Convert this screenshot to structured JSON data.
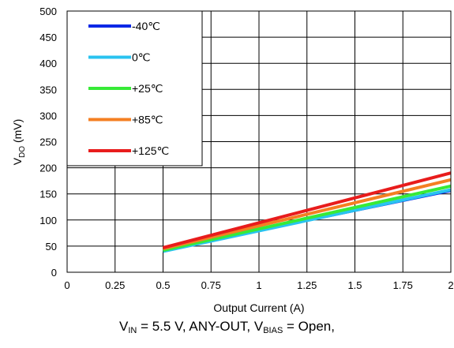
{
  "caption": {
    "v_in_main": "V",
    "v_in_sub": "IN",
    "v_in_rest": " = 5.5 V, ANY-OUT, ",
    "v_bias_main": "V",
    "v_bias_sub": "BIAS",
    "v_bias_rest": " = Open,"
  },
  "chart_data": {
    "type": "line",
    "xlabel": "Output Current (A)",
    "ylabel_main": "V",
    "ylabel_sub": "DO",
    "ylabel_rest": " (mV)",
    "xlim": [
      0,
      2
    ],
    "ylim": [
      0,
      500
    ],
    "xticks": [
      0,
      0.25,
      0.5,
      0.75,
      1,
      1.25,
      1.5,
      1.75,
      2
    ],
    "xtick_labels": [
      "0",
      "0.25",
      "0.5",
      "0.75",
      "1",
      "1.25",
      "1.5",
      "1.75",
      "2"
    ],
    "yticks": [
      0,
      50,
      100,
      150,
      200,
      250,
      300,
      350,
      400,
      450,
      500
    ],
    "ytick_labels": [
      "0",
      "50",
      "100",
      "150",
      "200",
      "250",
      "300",
      "350",
      "400",
      "450",
      "500"
    ],
    "grid": true,
    "legend_position": "top-left",
    "series": [
      {
        "name": "-40℃",
        "color": "#0a28e6",
        "x": [
          0.5,
          2
        ],
        "y": [
          41,
          155
        ]
      },
      {
        "name": "0℃",
        "color": "#29c3f0",
        "x": [
          0.5,
          2
        ],
        "y": [
          40,
          158
        ]
      },
      {
        "name": "+25℃",
        "color": "#37ea37",
        "x": [
          0.5,
          2
        ],
        "y": [
          42,
          165
        ]
      },
      {
        "name": "+85℃",
        "color": "#f47f22",
        "x": [
          0.5,
          2
        ],
        "y": [
          45,
          177
        ]
      },
      {
        "name": "+125℃",
        "color": "#e81c1c",
        "x": [
          0.5,
          2
        ],
        "y": [
          47,
          190
        ]
      }
    ]
  }
}
